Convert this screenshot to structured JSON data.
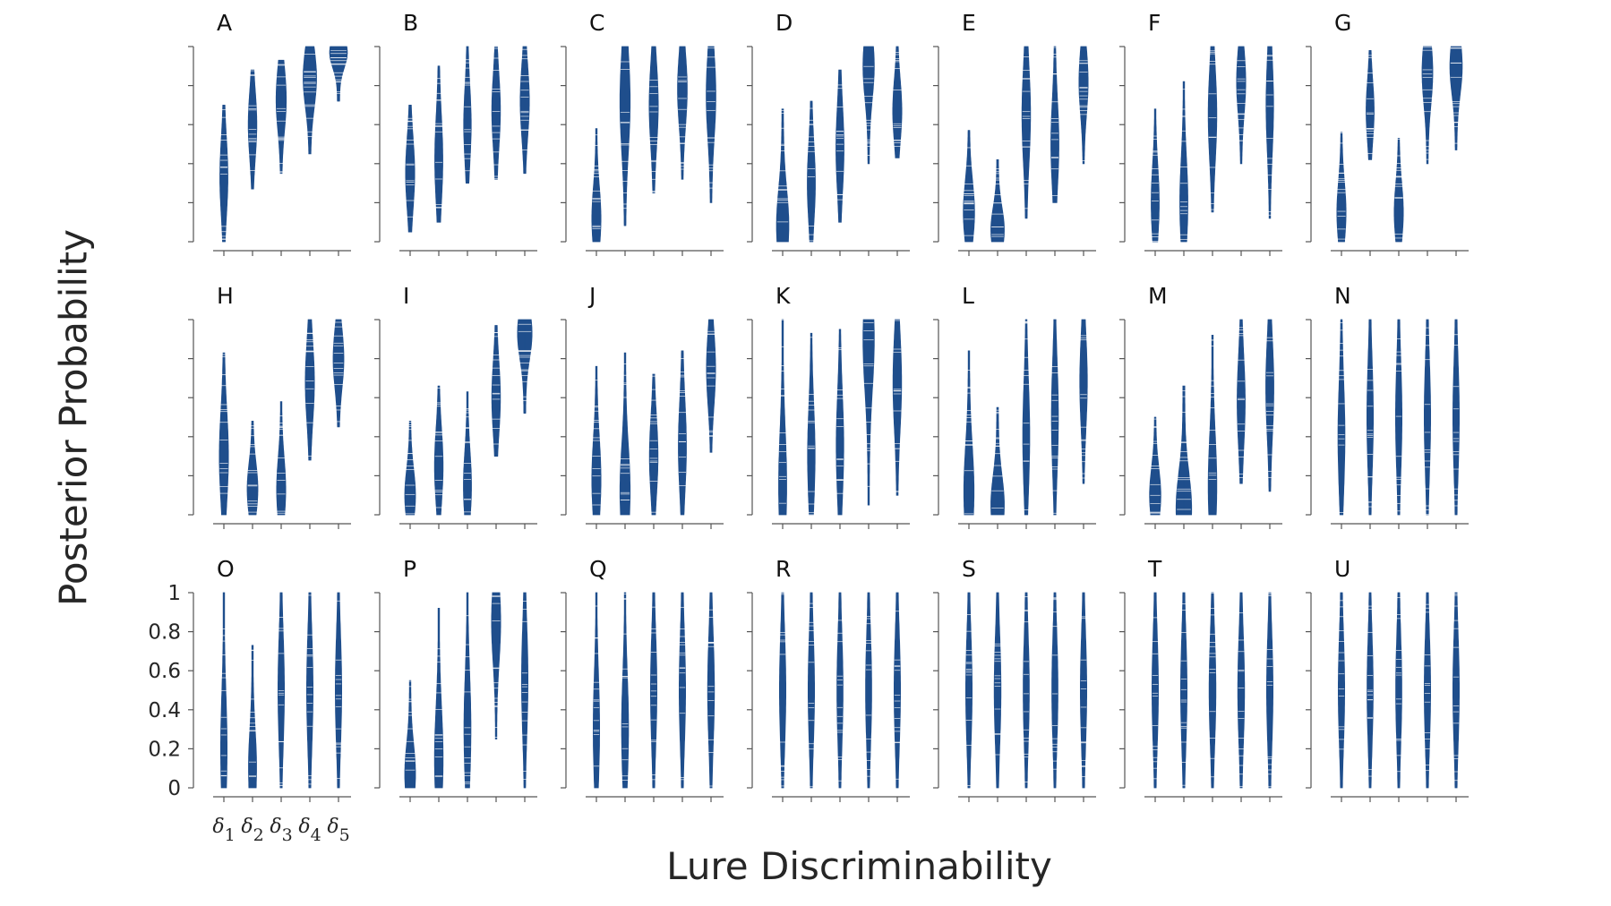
{
  "figure": {
    "ylabel": "Posterior Probability",
    "xlabel": "Lure Discriminability",
    "yticks": [
      "0",
      "0.2",
      "0.4",
      "0.6",
      "0.8",
      "1"
    ],
    "xticks": [
      "δ1",
      "δ2",
      "δ3",
      "δ4",
      "δ5"
    ],
    "color": "#1f4e8c"
  },
  "chart_data": {
    "type": "violin-strip",
    "ylim": [
      0,
      1
    ],
    "categories": [
      "δ1",
      "δ2",
      "δ3",
      "δ4",
      "δ5"
    ],
    "xlabel": "Lure Discriminability",
    "ylabel": "Posterior Probability",
    "panels": [
      {
        "label": "A",
        "dists": [
          [
            0.0,
            0.7,
            0.33,
            0.5
          ],
          [
            0.27,
            0.88,
            0.6,
            0.55
          ],
          [
            0.35,
            0.93,
            0.73,
            0.7
          ],
          [
            0.45,
            1.0,
            0.84,
            1.0
          ],
          [
            0.72,
            1.0,
            0.97,
            1.4
          ]
        ]
      },
      {
        "label": "B",
        "dists": [
          [
            0.05,
            0.7,
            0.35,
            0.6
          ],
          [
            0.1,
            0.9,
            0.42,
            0.5
          ],
          [
            0.3,
            1.0,
            0.6,
            0.45
          ],
          [
            0.32,
            1.0,
            0.67,
            0.55
          ],
          [
            0.35,
            1.0,
            0.72,
            0.6
          ]
        ]
      },
      {
        "label": "C",
        "dists": [
          [
            0.0,
            0.58,
            0.12,
            0.6
          ],
          [
            0.08,
            1.0,
            0.72,
            0.7
          ],
          [
            0.25,
            1.0,
            0.7,
            0.6
          ],
          [
            0.32,
            1.0,
            0.78,
            0.65
          ],
          [
            0.2,
            1.0,
            0.75,
            0.65
          ]
        ]
      },
      {
        "label": "D",
        "dists": [
          [
            0.0,
            0.68,
            0.08,
            0.9
          ],
          [
            0.0,
            0.72,
            0.3,
            0.5
          ],
          [
            0.1,
            0.88,
            0.48,
            0.5
          ],
          [
            0.4,
            1.0,
            0.9,
            0.8
          ],
          [
            0.43,
            1.0,
            0.67,
            0.6
          ]
        ]
      },
      {
        "label": "E",
        "dists": [
          [
            0.0,
            0.57,
            0.15,
            0.8
          ],
          [
            0.0,
            0.42,
            0.06,
            1.0
          ],
          [
            0.12,
            1.0,
            0.65,
            0.55
          ],
          [
            0.2,
            1.0,
            0.5,
            0.5
          ],
          [
            0.4,
            1.0,
            0.82,
            0.6
          ]
        ]
      },
      {
        "label": "F",
        "dists": [
          [
            0.0,
            0.68,
            0.2,
            0.5
          ],
          [
            0.0,
            0.82,
            0.2,
            0.5
          ],
          [
            0.15,
            1.0,
            0.65,
            0.55
          ],
          [
            0.4,
            1.0,
            0.82,
            0.6
          ],
          [
            0.12,
            1.0,
            0.7,
            0.45
          ]
        ]
      },
      {
        "label": "G",
        "dists": [
          [
            0.0,
            0.56,
            0.15,
            0.6
          ],
          [
            0.42,
            0.98,
            0.67,
            0.5
          ],
          [
            0.0,
            0.53,
            0.15,
            0.6
          ],
          [
            0.4,
            1.0,
            0.87,
            0.75
          ],
          [
            0.47,
            1.0,
            0.9,
            0.9
          ]
        ]
      },
      {
        "label": "H",
        "dists": [
          [
            0.0,
            0.83,
            0.3,
            0.6
          ],
          [
            0.0,
            0.48,
            0.13,
            0.75
          ],
          [
            0.0,
            0.58,
            0.13,
            0.6
          ],
          [
            0.28,
            1.0,
            0.68,
            0.6
          ],
          [
            0.45,
            1.0,
            0.8,
            0.75
          ]
        ]
      },
      {
        "label": "I",
        "dists": [
          [
            0.0,
            0.48,
            0.1,
            0.75
          ],
          [
            0.0,
            0.66,
            0.25,
            0.55
          ],
          [
            0.0,
            0.63,
            0.15,
            0.5
          ],
          [
            0.3,
            0.97,
            0.6,
            0.55
          ],
          [
            0.52,
            1.0,
            0.93,
            1.1
          ]
        ]
      },
      {
        "label": "J",
        "dists": [
          [
            0.0,
            0.76,
            0.18,
            0.6
          ],
          [
            0.0,
            0.83,
            0.12,
            0.7
          ],
          [
            0.0,
            0.72,
            0.3,
            0.55
          ],
          [
            0.0,
            0.84,
            0.35,
            0.5
          ],
          [
            0.32,
            1.0,
            0.75,
            0.6
          ]
        ]
      },
      {
        "label": "K",
        "dists": [
          [
            0.0,
            1.0,
            0.15,
            0.5
          ],
          [
            0.0,
            0.93,
            0.3,
            0.45
          ],
          [
            0.0,
            0.95,
            0.35,
            0.45
          ],
          [
            0.05,
            1.0,
            0.9,
            0.8
          ],
          [
            0.1,
            1.0,
            0.68,
            0.55
          ]
        ]
      },
      {
        "label": "L",
        "dists": [
          [
            0.0,
            0.84,
            0.12,
            0.7
          ],
          [
            0.0,
            0.55,
            0.05,
            1.0
          ],
          [
            0.0,
            1.0,
            0.4,
            0.4
          ],
          [
            0.0,
            1.0,
            0.5,
            0.4
          ],
          [
            0.16,
            1.0,
            0.68,
            0.45
          ]
        ]
      },
      {
        "label": "M",
        "dists": [
          [
            0.0,
            0.5,
            0.1,
            0.8
          ],
          [
            0.0,
            0.66,
            0.03,
            1.2
          ],
          [
            0.0,
            0.92,
            0.15,
            0.55
          ],
          [
            0.16,
            1.0,
            0.58,
            0.5
          ],
          [
            0.12,
            1.0,
            0.65,
            0.5
          ]
        ]
      },
      {
        "label": "N",
        "dists": [
          [
            0.0,
            1.0,
            0.4,
            0.4
          ],
          [
            0.0,
            1.0,
            0.5,
            0.35
          ],
          [
            0.0,
            1.0,
            0.5,
            0.35
          ],
          [
            0.0,
            1.0,
            0.5,
            0.35
          ],
          [
            0.0,
            1.0,
            0.5,
            0.35
          ]
        ]
      },
      {
        "label": "O",
        "dists": [
          [
            0.0,
            1.0,
            0.2,
            0.35
          ],
          [
            0.0,
            0.73,
            0.1,
            0.5
          ],
          [
            0.0,
            1.0,
            0.5,
            0.35
          ],
          [
            0.0,
            1.0,
            0.5,
            0.35
          ],
          [
            0.0,
            1.0,
            0.5,
            0.35
          ]
        ]
      },
      {
        "label": "P",
        "dists": [
          [
            0.0,
            0.55,
            0.07,
            0.75
          ],
          [
            0.0,
            0.92,
            0.15,
            0.55
          ],
          [
            0.0,
            1.0,
            0.3,
            0.4
          ],
          [
            0.25,
            1.0,
            0.85,
            0.6
          ],
          [
            0.0,
            1.0,
            0.55,
            0.35
          ]
        ]
      },
      {
        "label": "Q",
        "dists": [
          [
            0.0,
            1.0,
            0.3,
            0.35
          ],
          [
            0.0,
            1.0,
            0.3,
            0.4
          ],
          [
            0.0,
            1.0,
            0.5,
            0.35
          ],
          [
            0.0,
            1.0,
            0.5,
            0.35
          ],
          [
            0.0,
            1.0,
            0.5,
            0.38
          ]
        ]
      },
      {
        "label": "R",
        "dists": [
          [
            0.0,
            1.0,
            0.5,
            0.35
          ],
          [
            0.0,
            1.0,
            0.5,
            0.35
          ],
          [
            0.0,
            1.0,
            0.5,
            0.32
          ],
          [
            0.0,
            1.0,
            0.5,
            0.32
          ],
          [
            0.0,
            1.0,
            0.5,
            0.35
          ]
        ]
      },
      {
        "label": "S",
        "dists": [
          [
            0.0,
            1.0,
            0.5,
            0.35
          ],
          [
            0.0,
            1.0,
            0.5,
            0.38
          ],
          [
            0.0,
            1.0,
            0.5,
            0.32
          ],
          [
            0.0,
            1.0,
            0.5,
            0.32
          ],
          [
            0.0,
            1.0,
            0.5,
            0.35
          ]
        ]
      },
      {
        "label": "T",
        "dists": [
          [
            0.0,
            1.0,
            0.5,
            0.35
          ],
          [
            0.0,
            1.0,
            0.5,
            0.35
          ],
          [
            0.0,
            1.0,
            0.5,
            0.38
          ],
          [
            0.0,
            1.0,
            0.5,
            0.38
          ],
          [
            0.0,
            1.0,
            0.5,
            0.35
          ]
        ]
      },
      {
        "label": "U",
        "dists": [
          [
            0.0,
            1.0,
            0.5,
            0.35
          ],
          [
            0.0,
            1.0,
            0.5,
            0.32
          ],
          [
            0.0,
            1.0,
            0.5,
            0.32
          ],
          [
            0.0,
            1.0,
            0.5,
            0.35
          ],
          [
            0.0,
            1.0,
            0.5,
            0.35
          ]
        ]
      }
    ]
  }
}
